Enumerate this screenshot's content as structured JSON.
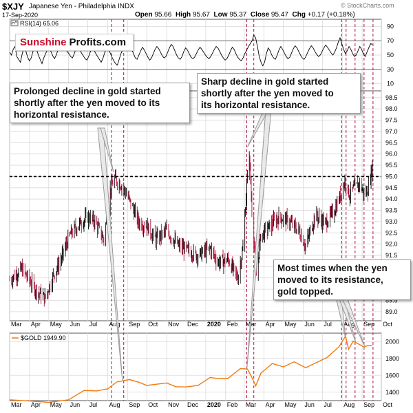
{
  "header": {
    "ticker": "$XJY",
    "name": "Japanese Yen - Philadelphia INDX",
    "date": "17-Sep-2020",
    "open_label": "Open",
    "open": "95.66",
    "high_label": "High",
    "high": "95.67",
    "low_label": "Low",
    "low": "95.37",
    "close_label": "Close",
    "close": "95.47",
    "chg_label": "Chg",
    "chg": "+0.17 (+0.18%)",
    "source": "© StockCharts.com"
  },
  "logo": {
    "part1": "Sunshine",
    "part2": "Profits.com"
  },
  "callouts": {
    "left": [
      "Prolonged decline in gold started",
      "shortly after the yen moved to its",
      "horizontal resistance."
    ],
    "middle": [
      "Sharp decline in gold started",
      "shortly after the yen moved to",
      "its horizontal resistance."
    ],
    "right": [
      "Most times when the yen",
      "moved to its resistance,",
      "gold topped."
    ]
  },
  "colors": {
    "up_bar": "#000000",
    "down_bar": "#b0103a",
    "gold_line": "#f07a10",
    "rsi_line": "#000000",
    "vertical_marker": "#b0103a",
    "grid": "#d9d9d9",
    "callout_pointer": "#9a9a9a"
  },
  "chart_data": [
    {
      "type": "line",
      "title": "RSI(14) 65.06",
      "legend": "RSI(14) 65.06",
      "ylim": [
        0,
        100
      ],
      "yticks": [
        10,
        30,
        50,
        70,
        90
      ],
      "reference_lines": [
        30,
        70
      ],
      "x_start": "2019-03-01",
      "x_end": "2020-10-01",
      "y": [
        54,
        50,
        58,
        62,
        48,
        44,
        40,
        52,
        60,
        56,
        47,
        42,
        46,
        55,
        63,
        58,
        50,
        44,
        38,
        46,
        52,
        57,
        60,
        55,
        49,
        45,
        50,
        58,
        64,
        68,
        66,
        60,
        55,
        52,
        48,
        46,
        52,
        59,
        62,
        58,
        53,
        49,
        45,
        43,
        48,
        55,
        61,
        57,
        52,
        48,
        44,
        40,
        46,
        54,
        60,
        58,
        53,
        47,
        42,
        38,
        36,
        44,
        52,
        58,
        63,
        66,
        72,
        64,
        58,
        52,
        46,
        44,
        50,
        56,
        61,
        57,
        52,
        47,
        43,
        46,
        52,
        58,
        62,
        59,
        54,
        49,
        46,
        48,
        54,
        60,
        65,
        62,
        56,
        50,
        46,
        44,
        48,
        55,
        60,
        57,
        52,
        47,
        45,
        47,
        52,
        57,
        61,
        58,
        54,
        50,
        47,
        45,
        48,
        53,
        58,
        62,
        60,
        55,
        50,
        46,
        43,
        45,
        50,
        56,
        61,
        58,
        52,
        47,
        44,
        42,
        46,
        52,
        57,
        62,
        66,
        70,
        78,
        74,
        62,
        48,
        40,
        35,
        40,
        52,
        60,
        56,
        50,
        46,
        44,
        50,
        57,
        62,
        58,
        53,
        48,
        45,
        47,
        53,
        59,
        63,
        60,
        55,
        50,
        46,
        44,
        48,
        54,
        59,
        63,
        60,
        55,
        51,
        48,
        50,
        55,
        60,
        64,
        61,
        57,
        53,
        50,
        54,
        60,
        68,
        74,
        66,
        58,
        52,
        56,
        62,
        58,
        52,
        48,
        50,
        56,
        62,
        58,
        52,
        48,
        54,
        60,
        66,
        65
      ]
    },
    {
      "type": "ohlc",
      "title": "$XJY Japanese Yen - Philadelphia INDX",
      "ylim": [
        88.6,
        98.8
      ],
      "yticks": [
        89.0,
        89.5,
        90.0,
        90.5,
        91.0,
        91.5,
        92.0,
        92.5,
        93.0,
        93.5,
        94.0,
        94.5,
        95.0,
        95.5,
        96.0,
        96.5,
        97.0,
        97.5,
        98.0,
        98.5
      ],
      "resistance": 95.0,
      "x_start": "2019-03-01",
      "x_end": "2020-10-01",
      "x_tick_labels": [
        "Mar",
        "Apr",
        "May",
        "Jun",
        "Jul",
        "Aug",
        "Sep",
        "Oct",
        "Nov",
        "Dec",
        "2020",
        "Feb",
        "Mar",
        "Apr",
        "May",
        "Jun",
        "Jul",
        "Aug",
        "Sep",
        "Oct"
      ],
      "x_tick_dates": [
        "2019-03-01",
        "2019-04-01",
        "2019-05-01",
        "2019-06-01",
        "2019-07-01",
        "2019-08-01",
        "2019-09-01",
        "2019-10-01",
        "2019-11-01",
        "2019-12-01",
        "2020-01-01",
        "2020-02-01",
        "2020-03-01",
        "2020-04-01",
        "2020-05-01",
        "2020-06-01",
        "2020-07-01",
        "2020-08-01",
        "2020-09-01",
        "2020-10-01"
      ],
      "close_path": [
        [
          "2019-03-01",
          90.4
        ],
        [
          "2019-03-20",
          90.9
        ],
        [
          "2019-04-10",
          90.0
        ],
        [
          "2019-04-25",
          89.6
        ],
        [
          "2019-05-08",
          90.6
        ],
        [
          "2019-05-20",
          91.3
        ],
        [
          "2019-06-03",
          92.4
        ],
        [
          "2019-06-18",
          92.9
        ],
        [
          "2019-07-01",
          93.2
        ],
        [
          "2019-07-12",
          93.0
        ],
        [
          "2019-07-26",
          92.2
        ],
        [
          "2019-08-05",
          94.4
        ],
        [
          "2019-08-12",
          94.9
        ],
        [
          "2019-08-23",
          94.6
        ],
        [
          "2019-09-03",
          94.0
        ],
        [
          "2019-09-18",
          93.0
        ],
        [
          "2019-10-01",
          92.8
        ],
        [
          "2019-10-15",
          92.2
        ],
        [
          "2019-11-01",
          92.6
        ],
        [
          "2019-11-20",
          91.9
        ],
        [
          "2019-12-05",
          91.7
        ],
        [
          "2019-12-20",
          91.5
        ],
        [
          "2020-01-08",
          91.8
        ],
        [
          "2020-01-20",
          91.2
        ],
        [
          "2020-02-05",
          91.3
        ],
        [
          "2020-02-20",
          90.5
        ],
        [
          "2020-02-28",
          91.8
        ],
        [
          "2020-03-05",
          94.6
        ],
        [
          "2020-03-09",
          96.0
        ],
        [
          "2020-03-13",
          93.5
        ],
        [
          "2020-03-20",
          90.6
        ],
        [
          "2020-03-27",
          92.4
        ],
        [
          "2020-04-10",
          92.8
        ],
        [
          "2020-04-25",
          93.2
        ],
        [
          "2020-05-10",
          93.0
        ],
        [
          "2020-05-25",
          92.6
        ],
        [
          "2020-06-05",
          91.9
        ],
        [
          "2020-06-20",
          93.3
        ],
        [
          "2020-07-05",
          92.9
        ],
        [
          "2020-07-20",
          93.5
        ],
        [
          "2020-07-31",
          94.3
        ],
        [
          "2020-08-05",
          94.8
        ],
        [
          "2020-08-12",
          94.2
        ],
        [
          "2020-08-20",
          94.5
        ],
        [
          "2020-08-28",
          94.7
        ],
        [
          "2020-09-04",
          94.2
        ],
        [
          "2020-09-10",
          94.4
        ],
        [
          "2020-09-17",
          95.47
        ]
      ]
    },
    {
      "type": "line",
      "title": "$GOLD 1949.90",
      "legend": "$GOLD 1949.90",
      "ylim": [
        1300,
        2100
      ],
      "yticks": [
        1400,
        1600,
        1800,
        2000
      ],
      "x_start": "2019-03-01",
      "x_end": "2020-10-01",
      "x_tick_labels": [
        "Mar",
        "Apr",
        "May",
        "Jun",
        "Jul",
        "Aug",
        "Sep",
        "Oct",
        "Nov",
        "Dec",
        "2020",
        "Feb",
        "Mar",
        "Apr",
        "May",
        "Jun",
        "Jul",
        "Aug",
        "Sep",
        "Oct"
      ],
      "points": [
        [
          "2019-03-01",
          1310
        ],
        [
          "2019-04-01",
          1295
        ],
        [
          "2019-05-01",
          1280
        ],
        [
          "2019-06-01",
          1310
        ],
        [
          "2019-06-25",
          1420
        ],
        [
          "2019-07-15",
          1415
        ],
        [
          "2019-08-01",
          1440
        ],
        [
          "2019-08-15",
          1520
        ],
        [
          "2019-09-04",
          1550
        ],
        [
          "2019-09-20",
          1515
        ],
        [
          "2019-10-01",
          1480
        ],
        [
          "2019-11-01",
          1510
        ],
        [
          "2019-11-15",
          1465
        ],
        [
          "2019-12-01",
          1462
        ],
        [
          "2019-12-20",
          1480
        ],
        [
          "2020-01-08",
          1575
        ],
        [
          "2020-01-20",
          1560
        ],
        [
          "2020-02-05",
          1565
        ],
        [
          "2020-02-24",
          1680
        ],
        [
          "2020-03-06",
          1675
        ],
        [
          "2020-03-12",
          1590
        ],
        [
          "2020-03-19",
          1475
        ],
        [
          "2020-03-27",
          1625
        ],
        [
          "2020-04-14",
          1740
        ],
        [
          "2020-05-01",
          1700
        ],
        [
          "2020-05-18",
          1760
        ],
        [
          "2020-06-05",
          1690
        ],
        [
          "2020-06-20",
          1745
        ],
        [
          "2020-07-08",
          1810
        ],
        [
          "2020-07-27",
          1940
        ],
        [
          "2020-08-06",
          2065
        ],
        [
          "2020-08-11",
          1910
        ],
        [
          "2020-08-18",
          2005
        ],
        [
          "2020-08-28",
          1965
        ],
        [
          "2020-09-04",
          1935
        ],
        [
          "2020-09-10",
          1955
        ],
        [
          "2020-09-17",
          1950
        ]
      ]
    }
  ],
  "markers": {
    "dates": [
      "2019-08-07",
      "2019-08-26",
      "2020-03-05",
      "2020-03-16",
      "2020-07-31",
      "2020-08-07",
      "2020-08-21",
      "2020-09-04",
      "2020-09-18"
    ]
  }
}
